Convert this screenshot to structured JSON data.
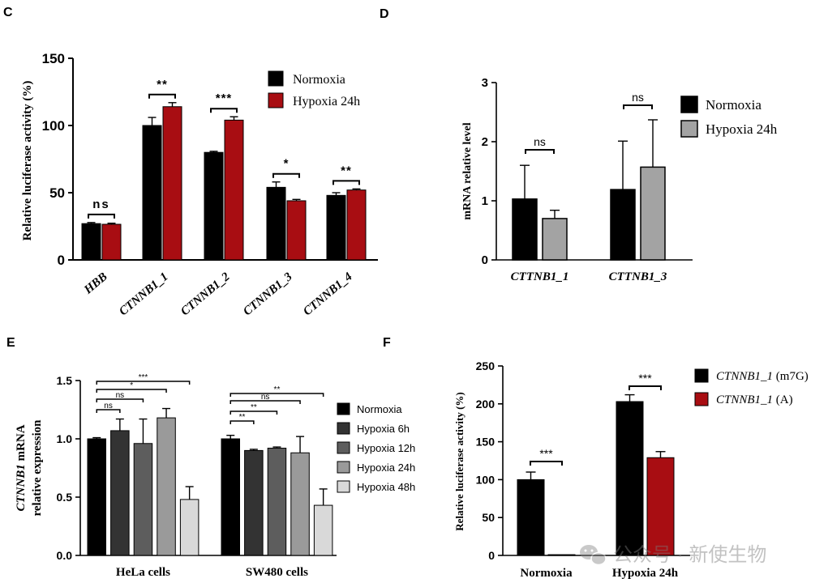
{
  "panel_letters": {
    "c": "C",
    "d": "D",
    "e": "E",
    "f": "F"
  },
  "watermark": {
    "text": "公众号 · 新使生物",
    "icon": "wechat-icon"
  },
  "colors": {
    "black": "#000000",
    "red": "#a80d12",
    "gray": "#a3a3a3",
    "h6": "#333333",
    "h12": "#5d5d5d",
    "h24": "#9a9a9a",
    "h48": "#d9d9d9"
  },
  "chart_data": [
    {
      "id": "C",
      "type": "bar",
      "ylabel": "Relative luciferase activity (%)",
      "yticks": [
        0,
        50,
        100,
        150
      ],
      "ylim": [
        0,
        150
      ],
      "categories": [
        "HBB",
        "CTNNB1_1",
        "CTNNB1_2",
        "CTNNB1_3",
        "CTNNB1_4"
      ],
      "series": [
        {
          "name": "Normoxia",
          "color": "#000000",
          "values": [
            27,
            100,
            80,
            54,
            48
          ],
          "errors": [
            0.8,
            6,
            0.8,
            4,
            2
          ]
        },
        {
          "name": "Hypoxia 24h",
          "color": "#a80d12",
          "values": [
            26.5,
            114,
            104,
            44,
            52
          ],
          "errors": [
            0.8,
            3,
            2.5,
            1,
            0.8
          ]
        }
      ],
      "significance": [
        "ns",
        "**",
        "***",
        "*",
        "**"
      ]
    },
    {
      "id": "D",
      "type": "bar",
      "ylabel": "mRNA relative level",
      "yticks": [
        0,
        1,
        2,
        3
      ],
      "ylim": [
        0,
        3
      ],
      "categories": [
        "CTTNB1_1",
        "CTTNB1_3"
      ],
      "series": [
        {
          "name": "Normoxia",
          "color": "#000000",
          "values": [
            1.03,
            1.19
          ],
          "errors": [
            0.57,
            0.82
          ]
        },
        {
          "name": "Hypoxia 24h",
          "color": "#a3a3a3",
          "values": [
            0.7,
            1.57
          ],
          "errors": [
            0.14,
            0.8
          ]
        }
      ],
      "significance": [
        "ns",
        "ns"
      ]
    },
    {
      "id": "E",
      "type": "bar",
      "ylabel_italic": "CTNNB1",
      "ylabel_rest": " mRNA",
      "ylabel_line2": "relative expression",
      "yticks": [
        "0.0",
        "0.5",
        "1.0",
        "1.5"
      ],
      "ylim": [
        0,
        1.5
      ],
      "categories": [
        "HeLa cells",
        "SW480 cells"
      ],
      "series": [
        {
          "name": "Normoxia",
          "color": "#000000",
          "values": [
            1.0,
            1.0
          ],
          "errors": [
            0.01,
            0.03
          ]
        },
        {
          "name": "Hypoxia 6h",
          "color": "#333333",
          "values": [
            1.07,
            0.9
          ],
          "errors": [
            0.1,
            0.01
          ]
        },
        {
          "name": "Hypoxia 12h",
          "color": "#5d5d5d",
          "values": [
            0.96,
            0.92
          ],
          "errors": [
            0.21,
            0.01
          ]
        },
        {
          "name": "Hypoxia 24h",
          "color": "#9a9a9a",
          "values": [
            1.18,
            0.88
          ],
          "errors": [
            0.08,
            0.14
          ]
        },
        {
          "name": "Hypoxia 48h",
          "color": "#d9d9d9",
          "values": [
            0.48,
            0.43
          ],
          "errors": [
            0.11,
            0.14
          ]
        }
      ],
      "brackets": [
        {
          "group": 0,
          "to": 4,
          "label": "***"
        },
        {
          "group": 0,
          "to": 3,
          "label": "*"
        },
        {
          "group": 0,
          "to": 2,
          "label": "ns"
        },
        {
          "group": 0,
          "to": 1,
          "label": "ns"
        },
        {
          "group": 1,
          "to": 4,
          "label": "**"
        },
        {
          "group": 1,
          "to": 3,
          "label": "ns"
        },
        {
          "group": 1,
          "to": 2,
          "label": "**"
        },
        {
          "group": 1,
          "to": 1,
          "label": "**"
        }
      ]
    },
    {
      "id": "F",
      "type": "bar",
      "ylabel": "Relative luciferase activity (%)",
      "yticks": [
        0,
        50,
        100,
        150,
        200,
        250
      ],
      "ylim": [
        0,
        250
      ],
      "categories": [
        "Normoxia",
        "Hypoxia 24h"
      ],
      "series": [
        {
          "name_italic": "CTNNB1_1",
          "name_rest": " (m7G)",
          "color": "#000000",
          "values": [
            100,
            203
          ],
          "errors": [
            10,
            9
          ]
        },
        {
          "name_italic": "CTNNB1_1",
          "name_rest": " (A)",
          "color": "#a80d12",
          "values": [
            1,
            129
          ],
          "errors": [
            0,
            8
          ]
        }
      ],
      "significance": [
        "***",
        "***"
      ]
    }
  ]
}
